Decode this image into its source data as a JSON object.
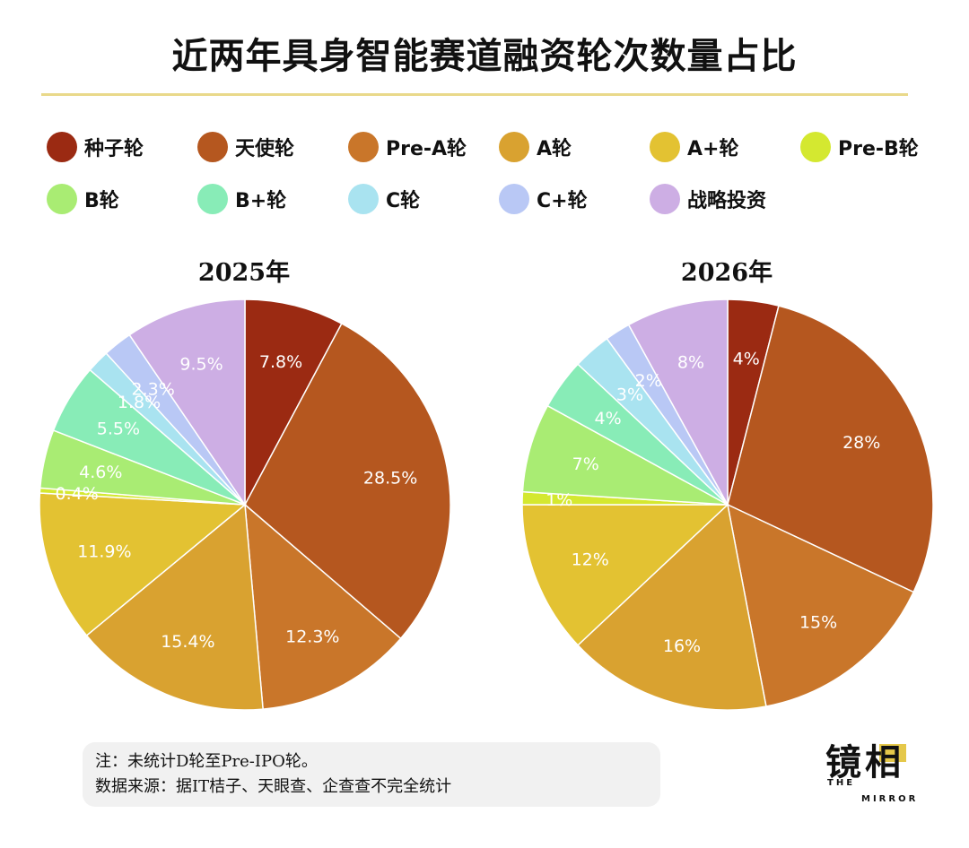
{
  "title": "近两年具身智能赛道融资轮次数量占比",
  "legend": [
    {
      "label": "种子轮",
      "color": "#9b2a12"
    },
    {
      "label": "天使轮",
      "color": "#b5571f"
    },
    {
      "label": "Pre-A轮",
      "color": "#c9762a"
    },
    {
      "label": "A轮",
      "color": "#d9a230"
    },
    {
      "label": "A+轮",
      "color": "#e3c232"
    },
    {
      "label": "Pre-B轮",
      "color": "#d4e830"
    },
    {
      "label": "B轮",
      "color": "#a9ec73"
    },
    {
      "label": "B+轮",
      "color": "#88ecb7"
    },
    {
      "label": "C轮",
      "color": "#a9e3f0"
    },
    {
      "label": "C+轮",
      "color": "#b9c8f5"
    },
    {
      "label": "战略投资",
      "color": "#cdaee4"
    }
  ],
  "chart_data": [
    {
      "type": "pie",
      "title": "2025年",
      "categories": [
        "种子轮",
        "天使轮",
        "Pre-A轮",
        "A轮",
        "A+轮",
        "Pre-B轮",
        "B轮",
        "B+轮",
        "C轮",
        "C+轮",
        "战略投资"
      ],
      "values": [
        7.8,
        28.5,
        12.3,
        15.4,
        11.9,
        0.4,
        4.6,
        5.5,
        1.8,
        2.3,
        9.5
      ],
      "labels": [
        "7.8%",
        "28.5%",
        "12.3%",
        "15.4%",
        "11.9%",
        "0.4%",
        "4.6%",
        "5.5%",
        "1.8%",
        "2.3%",
        "9.5%"
      ]
    },
    {
      "type": "pie",
      "title": "2026年",
      "categories": [
        "种子轮",
        "天使轮",
        "Pre-A轮",
        "A轮",
        "A+轮",
        "Pre-B轮",
        "B轮",
        "B+轮",
        "C轮",
        "C+轮",
        "战略投资"
      ],
      "values": [
        4,
        28,
        15,
        16,
        12,
        1,
        7,
        4,
        3,
        2,
        8
      ],
      "labels": [
        "4%",
        "28%",
        "15%",
        "16%",
        "12%",
        "1%",
        "7%",
        "4%",
        "3%",
        "2%",
        "8%"
      ]
    }
  ],
  "note": {
    "line1": "注：未统计D轮至Pre-IPO轮。",
    "line2": "数据来源：据IT桔子、天眼查、企查查不完全统计"
  },
  "logo": {
    "chars": "镜相",
    "line1": "THE",
    "line2": "MIRROR"
  }
}
